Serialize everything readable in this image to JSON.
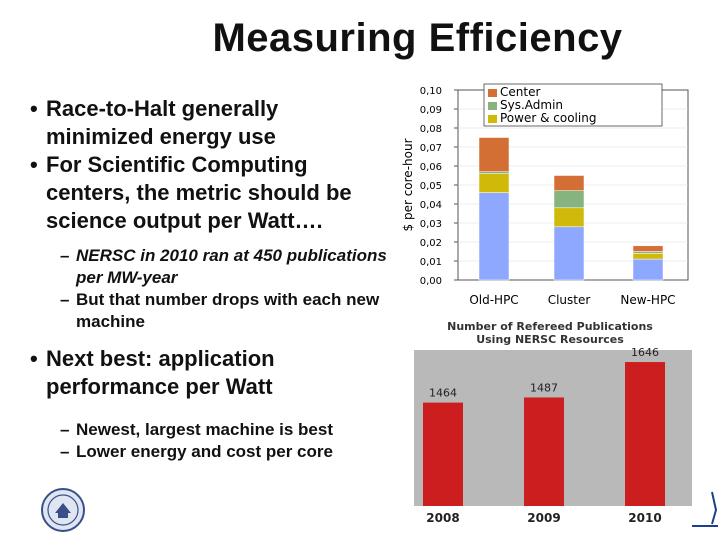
{
  "slide": {
    "title": "Measuring Efficiency",
    "bullets": [
      {
        "text": "Race-to-Halt generally minimized energy use"
      },
      {
        "text": "For Scientific Computing centers, the metric should be science output per Watt…."
      }
    ],
    "sub_bullets_1": [
      {
        "text": "NERSC in 2010 ran at 450 publications per MW-year"
      },
      {
        "text": "But that number drops with each new machine"
      }
    ],
    "bullet_next": "Next best: application performance per Watt",
    "sub_bullets_2": [
      {
        "text": "Newest, largest machine is best"
      },
      {
        "text": "Lower energy and cost per core"
      }
    ]
  },
  "colors": {
    "center": "#d36f35",
    "sysadmin": "#86b37e",
    "power": "#d1b90a",
    "base": "#8ea7ff",
    "bar_red": "#cc1e1e",
    "pub_panel_bg": "#b9b9b9"
  },
  "chart_data": [
    {
      "type": "bar",
      "stacked": true,
      "ylabel": "$ per core-hour",
      "categories": [
        "Old-HPC",
        "Cluster",
        "New-HPC"
      ],
      "legend": [
        "Center",
        "Sys.Admin",
        "Power & cooling"
      ],
      "series": [
        {
          "name": "base",
          "values": [
            0.046,
            0.028,
            0.011
          ]
        },
        {
          "name": "Power & cooling",
          "values": [
            0.01,
            0.01,
            0.003
          ]
        },
        {
          "name": "Sys.Admin",
          "values": [
            0.001,
            0.009,
            0.001
          ]
        },
        {
          "name": "Center",
          "values": [
            0.018,
            0.008,
            0.003
          ]
        }
      ],
      "yticks": [
        "0,10",
        "0,09",
        "0,08",
        "0,07",
        "0,06",
        "0,05",
        "0,04",
        "0,03",
        "0,02",
        "0,01",
        "0,00"
      ],
      "ylim": [
        0,
        0.1
      ]
    },
    {
      "type": "bar",
      "title": "Number of Refereed Publications Using NERSC Resources",
      "categories": [
        "2008",
        "2009",
        "2010"
      ],
      "values": [
        1464,
        1487,
        1646
      ],
      "value_labels": [
        "1464",
        "1487",
        "1646"
      ],
      "ylim": [
        1000,
        1700
      ]
    }
  ]
}
